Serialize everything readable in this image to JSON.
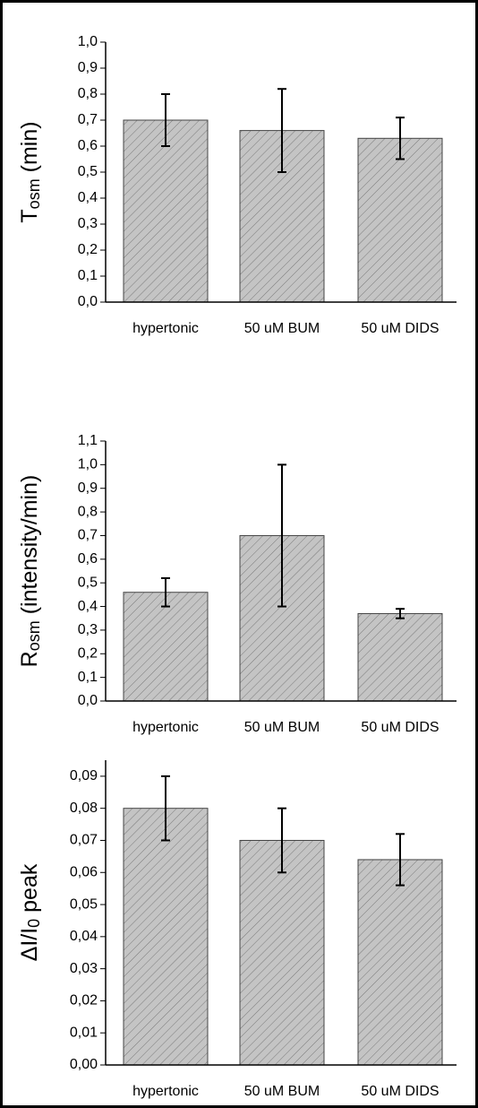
{
  "chart_data": [
    {
      "type": "bar",
      "y_label": [
        "T",
        "osm",
        " (min)"
      ],
      "categories": [
        "hypertonic",
        "50 uM BUM",
        "50 uM DIDS"
      ],
      "values": [
        0.7,
        0.66,
        0.63
      ],
      "errors": [
        0.1,
        0.16,
        0.08
      ],
      "color": "#c4c4c4",
      "ylim": [
        0,
        1.0
      ],
      "yticks": [
        {
          "value": 0,
          "label": "0,0"
        },
        {
          "value": 0.1,
          "label": "0,1"
        },
        {
          "value": 0.2,
          "label": "0,2"
        },
        {
          "value": 0.3,
          "label": "0,3"
        },
        {
          "value": 0.4,
          "label": "0,4"
        },
        {
          "value": 0.5,
          "label": "0,5"
        },
        {
          "value": 0.6,
          "label": "0,6"
        },
        {
          "value": 0.7,
          "label": "0,7"
        },
        {
          "value": 0.8,
          "label": "0,8"
        },
        {
          "value": 0.9,
          "label": "0,9"
        },
        {
          "value": 1.0,
          "label": "1,0"
        }
      ]
    },
    {
      "type": "bar",
      "y_label": [
        "R",
        "osm",
        " (intensity/min)"
      ],
      "categories": [
        "hypertonic",
        "50 uM BUM",
        "50 uM DIDS"
      ],
      "values": [
        0.46,
        0.7,
        0.37
      ],
      "errors": [
        0.06,
        0.3,
        0.02
      ],
      "color": "#c4c4c4",
      "ylim": [
        0,
        1.1
      ],
      "yticks": [
        {
          "value": 0,
          "label": "0,0"
        },
        {
          "value": 0.1,
          "label": "0,1"
        },
        {
          "value": 0.2,
          "label": "0,2"
        },
        {
          "value": 0.3,
          "label": "0,3"
        },
        {
          "value": 0.4,
          "label": "0,4"
        },
        {
          "value": 0.5,
          "label": "0,5"
        },
        {
          "value": 0.6,
          "label": "0,6"
        },
        {
          "value": 0.7,
          "label": "0,7"
        },
        {
          "value": 0.8,
          "label": "0,8"
        },
        {
          "value": 0.9,
          "label": "0,9"
        },
        {
          "value": 1.0,
          "label": "1,0"
        },
        {
          "value": 1.1,
          "label": "1,1"
        }
      ]
    },
    {
      "type": "bar",
      "y_label": [
        "ΔI/I",
        "0",
        " peak"
      ],
      "categories": [
        "hypertonic",
        "50 uM BUM",
        "50 uM DIDS"
      ],
      "values": [
        0.08,
        0.07,
        0.064
      ],
      "errors": [
        0.01,
        0.01,
        0.008
      ],
      "color": "#c4c4c4",
      "ylim": [
        0,
        0.095
      ],
      "yticks": [
        {
          "value": 0,
          "label": "0,00"
        },
        {
          "value": 0.01,
          "label": "0,01"
        },
        {
          "value": 0.02,
          "label": "0,02"
        },
        {
          "value": 0.03,
          "label": "0,03"
        },
        {
          "value": 0.04,
          "label": "0,04"
        },
        {
          "value": 0.05,
          "label": "0,05"
        },
        {
          "value": 0.06,
          "label": "0,06"
        },
        {
          "value": 0.07,
          "label": "0,07"
        },
        {
          "value": 0.08,
          "label": "0,08"
        },
        {
          "value": 0.09,
          "label": "0,09"
        }
      ]
    }
  ]
}
